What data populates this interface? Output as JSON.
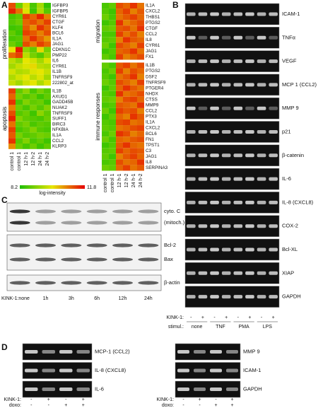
{
  "panel_labels": [
    "A",
    "B",
    "C",
    "D"
  ],
  "panel_a": {
    "columns": [
      "control 1",
      "control 1",
      "12 h-1",
      "12 h-2",
      "24 h-1",
      "24 h-2"
    ],
    "color_scale": {
      "min": 8.2,
      "max": 11.8,
      "label": "log-intensity"
    },
    "left": [
      {
        "name": "proliferation",
        "genes": [
          "IGFBP3",
          "IGFBP5",
          "CYR61",
          "CTGF",
          "KLF4",
          "BCL6",
          "IL1A",
          "JAG1",
          "CDKN1C",
          "PMP22",
          "IL6",
          "CYR61",
          "IL1B",
          "TNFRSF9",
          "222802_at"
        ],
        "values": [
          [
            11.2,
            8.9,
            9.8,
            8.6,
            9.4,
            8.4
          ],
          [
            11.5,
            10.9,
            9.9,
            8.5,
            9.5,
            8.7
          ],
          [
            8.6,
            8.8,
            11.3,
            11.0,
            11.5,
            10.8
          ],
          [
            8.7,
            8.9,
            11.0,
            11.2,
            10.9,
            11.3
          ],
          [
            8.5,
            8.6,
            11.1,
            10.7,
            11.4,
            11.0
          ],
          [
            8.8,
            8.5,
            11.3,
            11.1,
            10.8,
            11.2
          ],
          [
            8.6,
            8.7,
            10.9,
            11.4,
            11.0,
            10.6
          ],
          [
            8.9,
            8.6,
            11.2,
            10.8,
            11.3,
            11.0
          ],
          [
            10.0,
            11.6,
            9.2,
            8.8,
            10.1,
            9.0
          ],
          [
            11.0,
            11.3,
            9.6,
            9.0,
            8.7,
            9.3
          ],
          [
            9.6,
            9.3,
            10.0,
            9.8,
            9.4,
            9.9
          ],
          [
            9.4,
            9.7,
            9.9,
            10.1,
            9.6,
            9.5
          ],
          [
            9.8,
            9.5,
            9.6,
            9.9,
            10.0,
            9.7
          ],
          [
            9.5,
            9.8,
            10.0,
            9.6,
            9.9,
            9.4
          ],
          [
            9.7,
            9.4,
            9.8,
            10.0,
            9.5,
            9.9
          ]
        ]
      },
      {
        "name": "apoptosis",
        "genes": [
          "IL1B",
          "AXUD1",
          "GADD45B",
          "NUAK2",
          "TNFRSF9",
          "SUFF1",
          "BIRC3",
          "NFKBIA",
          "IL1A",
          "CCL2",
          "KLRP3"
        ],
        "values": [
          [
            11.3,
            8.8,
            9.2,
            8.6,
            9.0,
            8.7
          ],
          [
            11.0,
            9.0,
            8.7,
            8.9,
            8.5,
            8.8
          ],
          [
            11.4,
            8.6,
            9.1,
            8.8,
            8.9,
            8.5
          ],
          [
            10.8,
            8.9,
            8.6,
            9.0,
            8.7,
            9.1
          ],
          [
            11.2,
            8.7,
            8.9,
            8.5,
            9.2,
            8.8
          ],
          [
            11.5,
            9.1,
            8.8,
            8.7,
            8.6,
            8.9
          ],
          [
            10.9,
            8.8,
            9.0,
            8.6,
            8.8,
            8.7
          ],
          [
            11.3,
            8.6,
            8.8,
            9.1,
            8.7,
            8.6
          ],
          [
            11.1,
            9.0,
            8.7,
            8.8,
            9.0,
            8.9
          ],
          [
            11.4,
            8.7,
            9.1,
            8.6,
            8.8,
            8.5
          ],
          [
            10.7,
            8.9,
            8.6,
            8.9,
            8.5,
            8.8
          ]
        ]
      }
    ],
    "right": [
      {
        "name": "migration",
        "genes": [
          "IL1A",
          "CXCL2",
          "THBS1",
          "PTGS2",
          "CTGF",
          "CCL2",
          "IL8",
          "CYR61",
          "JAG1",
          "FX1"
        ],
        "values": [
          [
            8.6,
            8.8,
            11.2,
            11.0,
            11.4,
            10.9
          ],
          [
            8.7,
            8.5,
            11.0,
            11.3,
            10.8,
            11.1
          ],
          [
            8.9,
            8.6,
            10.9,
            11.1,
            11.3,
            11.0
          ],
          [
            8.5,
            8.7,
            11.4,
            10.8,
            11.0,
            11.2
          ],
          [
            8.8,
            8.9,
            11.1,
            11.2,
            10.9,
            11.4
          ],
          [
            8.6,
            8.6,
            11.3,
            10.9,
            11.2,
            10.8
          ],
          [
            8.7,
            8.8,
            10.8,
            11.4,
            11.1,
            11.0
          ],
          [
            8.9,
            8.5,
            11.2,
            11.0,
            10.8,
            11.3
          ],
          [
            8.5,
            8.7,
            11.0,
            11.1,
            11.4,
            10.9
          ],
          [
            8.8,
            8.6,
            11.3,
            10.8,
            11.0,
            11.2
          ]
        ]
      },
      {
        "name": "immune responses",
        "genes": [
          "IL1B",
          "PTGS2",
          "DSF2",
          "TNFRSF9",
          "PTGER4",
          "NHDX",
          "CTSS",
          "MMP9",
          "CCL2",
          "PTX3",
          "IL1A",
          "CXCL2",
          "BCL6",
          "FN1",
          "TPST1",
          "C3",
          "JAG1",
          "IL8",
          "SERPINA3"
        ],
        "values": [
          [
            8.8,
            8.6,
            11.1,
            11.3,
            10.9,
            11.2
          ],
          [
            8.6,
            8.9,
            11.3,
            10.8,
            11.2,
            11.0
          ],
          [
            8.7,
            8.5,
            10.9,
            11.1,
            11.4,
            10.8
          ],
          [
            8.9,
            8.7,
            11.2,
            11.0,
            10.8,
            11.3
          ],
          [
            8.5,
            8.8,
            11.0,
            11.4,
            11.1,
            10.9
          ],
          [
            8.7,
            8.6,
            11.4,
            10.9,
            11.0,
            11.2
          ],
          [
            8.8,
            8.9,
            10.8,
            11.2,
            11.3,
            11.0
          ],
          [
            8.6,
            8.7,
            11.1,
            11.0,
            10.9,
            11.4
          ],
          [
            8.9,
            8.5,
            11.3,
            11.1,
            11.2,
            10.8
          ],
          [
            8.5,
            8.8,
            11.0,
            10.8,
            11.4,
            11.1
          ],
          [
            8.7,
            8.6,
            11.2,
            11.3,
            10.9,
            11.0
          ],
          [
            8.8,
            8.7,
            10.9,
            11.0,
            11.2,
            11.3
          ],
          [
            8.6,
            8.9,
            11.4,
            11.2,
            10.8,
            11.0
          ],
          [
            8.9,
            8.6,
            11.0,
            10.9,
            11.1,
            11.2
          ],
          [
            8.5,
            8.7,
            11.1,
            11.4,
            11.0,
            10.9
          ],
          [
            8.7,
            8.8,
            11.3,
            11.0,
            11.2,
            11.1
          ],
          [
            8.8,
            8.5,
            10.8,
            11.1,
            11.3,
            11.0
          ],
          [
            8.6,
            8.7,
            11.2,
            10.9,
            11.0,
            11.4
          ],
          [
            8.9,
            8.8,
            11.0,
            11.3,
            10.9,
            11.1
          ]
        ]
      }
    ]
  },
  "panel_b": {
    "genes": [
      "ICAM-1",
      "TNFα",
      "VEGF",
      "MCP 1 (CCL2)",
      "MMP 9",
      "p21",
      "β-catenin",
      "IL-6",
      "IL-8 (CXCL8)",
      "COX-2",
      "Bcl-XL",
      "XIAP",
      "GAPDH"
    ],
    "kink_label": "KINK-1:",
    "kink_signs": [
      "-",
      "+",
      "-",
      "+",
      "-",
      "+",
      "-",
      "+"
    ],
    "stimulus_label": "stimul.:",
    "stimuli": [
      "none",
      "TNF",
      "PMA",
      "LPS"
    ]
  },
  "panel_c": {
    "blots": [
      {
        "label_lines": [
          "cyto. C",
          "(mitoch.)"
        ]
      },
      {
        "label_lines": [
          "Bcl-2",
          "Bax"
        ]
      },
      {
        "label_lines": [
          "β-actin"
        ]
      }
    ],
    "kink_label": "KINK-1:",
    "lanes": [
      "none",
      "1h",
      "3h",
      "6h",
      "12h",
      "24h"
    ]
  },
  "panel_d": {
    "left_genes": [
      "MCP-1 (CCL2)",
      "IL-8 (CXCL8)",
      "IL-6"
    ],
    "right_genes": [
      "MMP 9",
      "ICAM-1",
      "GAPDH"
    ],
    "kink_label": "KINK-1:",
    "kink_signs": [
      "-",
      "+",
      "-",
      "+"
    ],
    "doxo_label": "doxo:",
    "doxo_signs": [
      "-",
      "-",
      "+",
      "+"
    ]
  }
}
